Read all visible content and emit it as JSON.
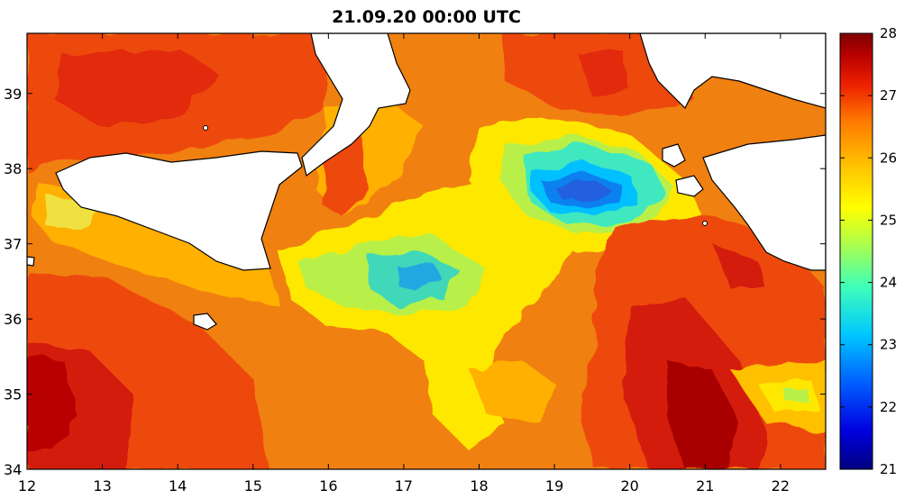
{
  "title": "21.09.20 00:00 UTC",
  "map": {
    "x_axis": {
      "min": 12,
      "max": 22.6,
      "ticks": [
        "12",
        "13",
        "14",
        "15",
        "16",
        "17",
        "18",
        "19",
        "20",
        "21",
        "22"
      ]
    },
    "y_axis": {
      "min": 34,
      "max": 39.8,
      "ticks": [
        "34",
        "35",
        "36",
        "37",
        "38",
        "39"
      ]
    }
  },
  "colorbar": {
    "min": 21,
    "max": 28,
    "ticks": [
      "21",
      "22",
      "23",
      "24",
      "25",
      "26",
      "27",
      "28"
    ],
    "colors": [
      "#00007f",
      "#0000e0",
      "#0060ff",
      "#00c8ff",
      "#40ffb8",
      "#b0ff48",
      "#ffff00",
      "#ffc000",
      "#ff7800",
      "#ee2200",
      "#b80000",
      "#7f0000"
    ]
  }
}
